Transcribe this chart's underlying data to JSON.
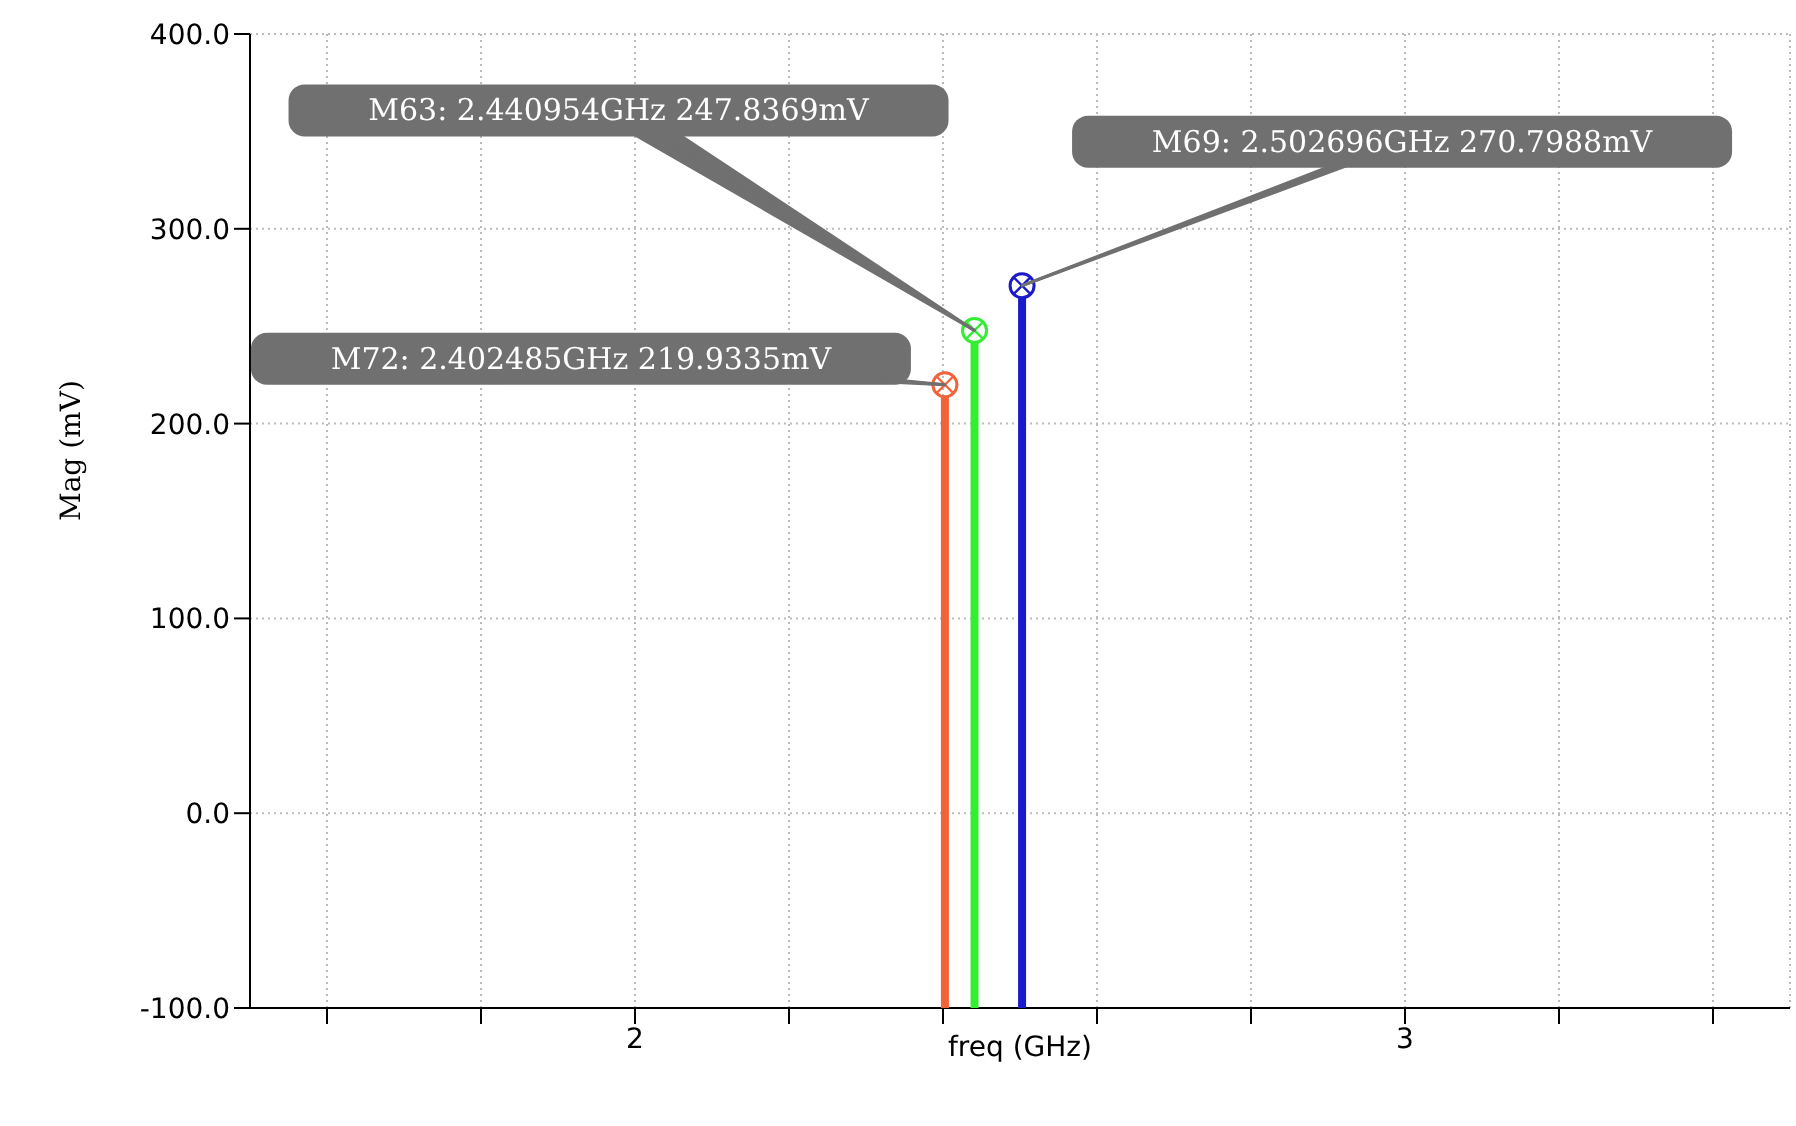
{
  "chart_data": {
    "type": "lollipop",
    "xlabel": "freq (GHz)",
    "ylabel": "Mag (mV)",
    "x": [
      2.402485,
      2.440954,
      2.502696
    ],
    "values": [
      219.9335,
      247.8369,
      270.7988
    ],
    "colors": [
      "#f4623a",
      "#33ee33",
      "#1a1acc"
    ],
    "marker": "circle",
    "xlim": [
      1.5,
      3.5
    ],
    "xticks": [
      {
        "value": 1.6,
        "label": null
      },
      {
        "value": 1.8,
        "label": null
      },
      2,
      {
        "value": 2.2,
        "label": null
      },
      {
        "value": 2.4,
        "label": null
      },
      {
        "value": 2.6,
        "label": null
      },
      {
        "value": 2.8,
        "label": null
      },
      3,
      {
        "value": 3.2,
        "label": null
      },
      {
        "value": 3.4,
        "label": null
      }
    ],
    "ylim": [
      -100,
      400
    ],
    "yticks": [
      {
        "value": -100,
        "label": "-100.0"
      },
      {
        "value": 0,
        "label": "0.0"
      },
      {
        "value": 100,
        "label": "100.0"
      },
      {
        "value": 200,
        "label": "200.0"
      },
      {
        "value": 300,
        "label": "300.0"
      },
      {
        "value": 400,
        "label": "400.0"
      }
    ],
    "grid": true,
    "annotations": [
      {
        "text": "M72: 2.402485GHz 219.9335mV",
        "x": 2.402485,
        "y": 219.9335
      },
      {
        "text": "M63: 2.440954GHz 247.8369mV",
        "x": 2.440954,
        "y": 247.8369
      },
      {
        "text": "M69: 2.502696GHz 270.7988mV",
        "x": 2.502696,
        "y": 270.7988
      }
    ]
  }
}
